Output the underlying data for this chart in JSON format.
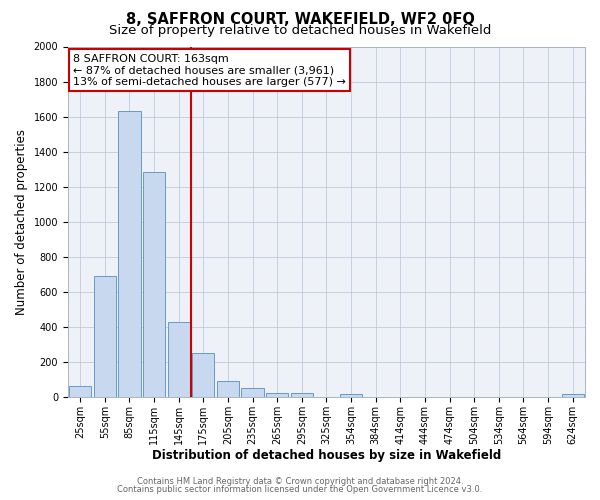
{
  "title": "8, SAFFRON COURT, WAKEFIELD, WF2 0FQ",
  "subtitle": "Size of property relative to detached houses in Wakefield",
  "xlabel": "Distribution of detached houses by size in Wakefield",
  "ylabel": "Number of detached properties",
  "bar_labels": [
    "25sqm",
    "55sqm",
    "85sqm",
    "115sqm",
    "145sqm",
    "175sqm",
    "205sqm",
    "235sqm",
    "265sqm",
    "295sqm",
    "325sqm",
    "354sqm",
    "384sqm",
    "414sqm",
    "444sqm",
    "474sqm",
    "504sqm",
    "534sqm",
    "564sqm",
    "594sqm",
    "624sqm"
  ],
  "bar_values": [
    65,
    690,
    1630,
    1285,
    430,
    250,
    90,
    50,
    25,
    20,
    0,
    15,
    0,
    0,
    0,
    0,
    0,
    0,
    0,
    0,
    15
  ],
  "bar_color": "#c8d9ef",
  "bar_edge_color": "#6699cc",
  "vline_color": "#cc0000",
  "annotation_text": "8 SAFFRON COURT: 163sqm\n← 87% of detached houses are smaller (3,961)\n13% of semi-detached houses are larger (577) →",
  "annotation_box_color": "#ffffff",
  "annotation_box_edge_color": "#cc0000",
  "ylim": [
    0,
    2000
  ],
  "yticks": [
    0,
    200,
    400,
    600,
    800,
    1000,
    1200,
    1400,
    1600,
    1800,
    2000
  ],
  "footer1": "Contains HM Land Registry data © Crown copyright and database right 2024.",
  "footer2": "Contains public sector information licensed under the Open Government Licence v3.0.",
  "bg_color": "#ffffff",
  "plot_bg_color": "#eef2f8",
  "title_fontsize": 10.5,
  "subtitle_fontsize": 9.5,
  "axis_label_fontsize": 8.5,
  "tick_fontsize": 7,
  "annotation_fontsize": 8,
  "footer_fontsize": 6
}
